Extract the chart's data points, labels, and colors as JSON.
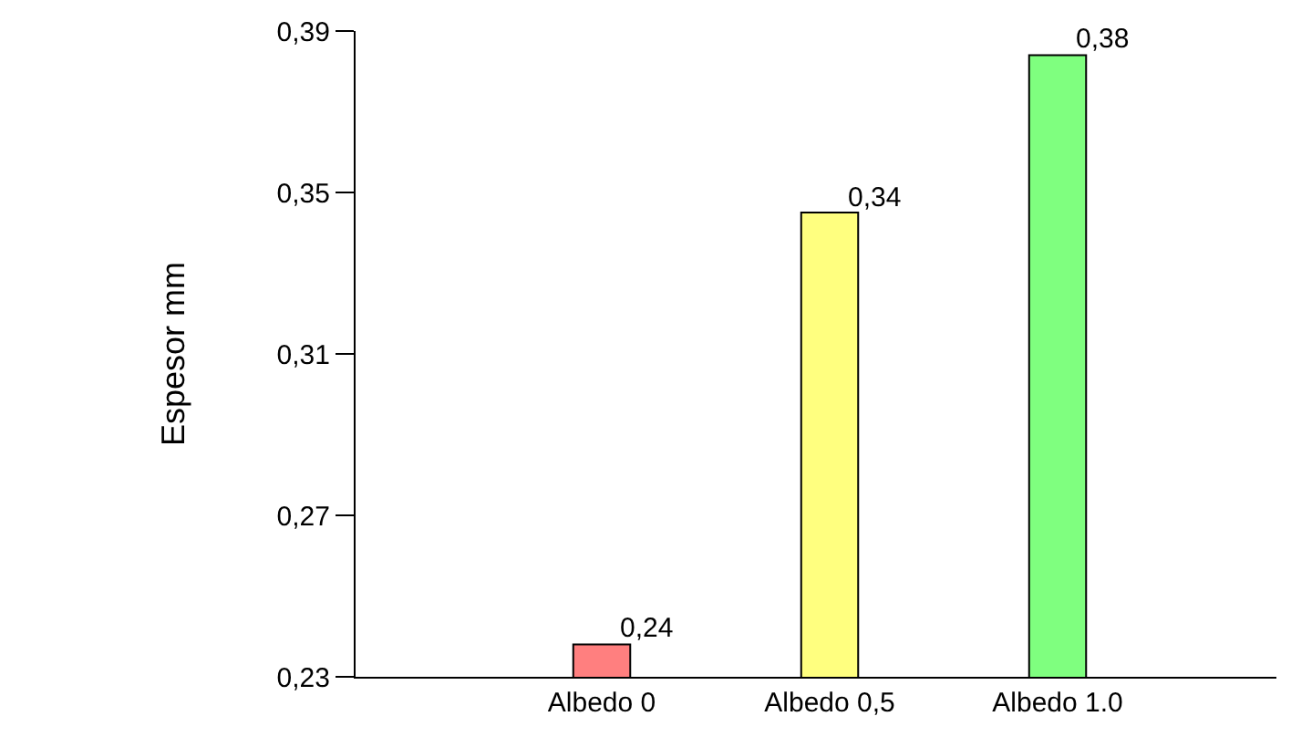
{
  "chart_data": {
    "type": "bar",
    "ylabel": "Espesor mm",
    "categories": [
      "Albedo 0",
      "Albedo 0,5",
      "Albedo 1.0"
    ],
    "values": [
      0.238,
      0.345,
      0.384
    ],
    "value_labels": [
      "0,24",
      "0,34",
      "0,38"
    ],
    "colors": [
      "#ff7f7f",
      "#ffff7f",
      "#7fff7f"
    ],
    "ylim": [
      0.23,
      0.39
    ],
    "yticks": [
      {
        "value": 0.23,
        "label": "0,23"
      },
      {
        "value": 0.27,
        "label": "0,27"
      },
      {
        "value": 0.31,
        "label": "0,31"
      },
      {
        "value": 0.35,
        "label": "0,35"
      },
      {
        "value": 0.39,
        "label": "0,39"
      }
    ]
  }
}
